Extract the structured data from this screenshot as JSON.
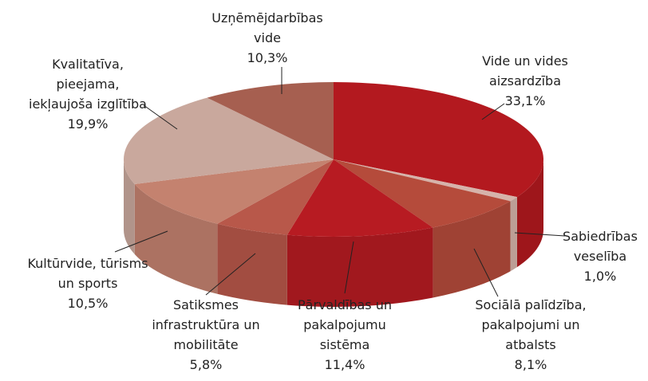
{
  "chart_data": {
    "type": "pie3d",
    "categories": [
      "Vide un vides\naizsardzība",
      "Sabiedrības\nveselība",
      "Sociālā palīdzība,\npakalpojumi un\natbalsts",
      "Pārvaldības un\npakalpojumu\nsistēma",
      "Satiksmes\ninfrastruktūra un\nmobilitāte",
      "Kultūrvide, tūrisms\nun sports",
      "Kvalitatīva,\npieejama,\niekļaujoša izglītība",
      "Uzņēmējdarbības\nvide"
    ],
    "values": [
      33.1,
      1.0,
      8.1,
      11.4,
      5.8,
      10.5,
      19.9,
      10.3
    ],
    "value_labels": [
      "33,1%",
      "1,0%",
      "8,1%",
      "11,4%",
      "5,8%",
      "10,5%",
      "19,9%",
      "10,3%"
    ],
    "colors": [
      "#b3191f",
      "#d6b3aa",
      "#b54b3b",
      "#b71b22",
      "#b8584a",
      "#c4826f",
      "#c9a89d",
      "#a65f50"
    ]
  }
}
